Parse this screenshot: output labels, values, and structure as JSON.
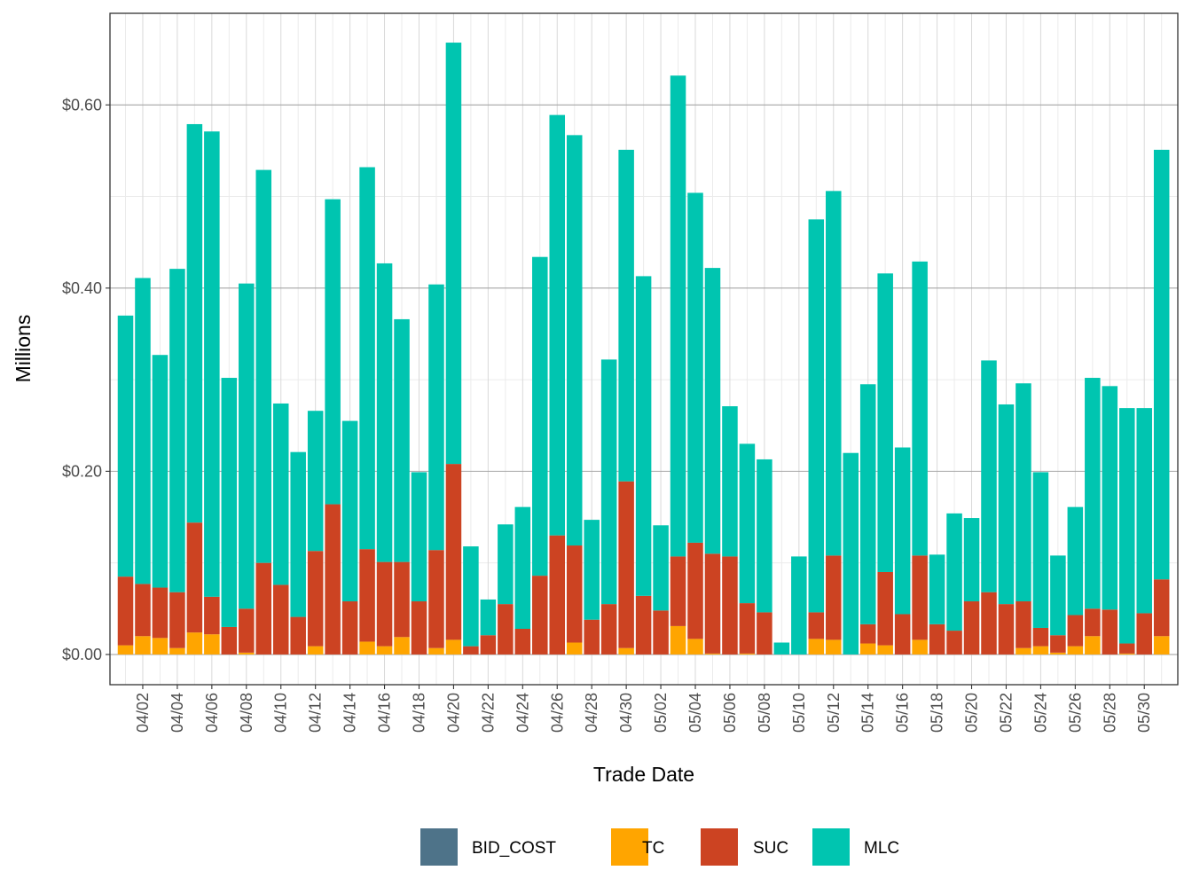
{
  "chart_data": {
    "type": "bar",
    "stacked": true,
    "xlabel": "Trade Date",
    "ylabel": "Millions",
    "ylim": [
      -0.033,
      0.7
    ],
    "y_ticks": [
      0.0,
      0.2,
      0.4,
      0.6
    ],
    "y_tick_labels": [
      "$0.00",
      "$0.20",
      "$0.40",
      "$0.60"
    ],
    "x_tick_labels": [
      "04/02",
      "04/04",
      "04/06",
      "04/08",
      "04/10",
      "04/12",
      "04/14",
      "04/16",
      "04/18",
      "04/20",
      "04/22",
      "04/24",
      "04/26",
      "04/28",
      "04/30",
      "05/02",
      "05/04",
      "05/06",
      "05/08",
      "05/10",
      "05/12",
      "05/14",
      "05/16",
      "05/18",
      "05/20",
      "05/22",
      "05/24",
      "05/26",
      "05/28",
      "05/30"
    ],
    "x_tick_start_index": 1,
    "x_tick_step": 2,
    "grid": true,
    "legend_position": "bottom",
    "categories": [
      "04/01",
      "04/02",
      "04/03",
      "04/04",
      "04/05",
      "04/06",
      "04/07",
      "04/08",
      "04/09",
      "04/10",
      "04/11",
      "04/12",
      "04/13",
      "04/14",
      "04/15",
      "04/16",
      "04/17",
      "04/18",
      "04/19",
      "04/20",
      "04/21",
      "04/22",
      "04/23",
      "04/24",
      "04/25",
      "04/26",
      "04/27",
      "04/28",
      "04/29",
      "04/30",
      "05/01",
      "05/02",
      "05/03",
      "05/04",
      "05/05",
      "05/06",
      "05/07",
      "05/08",
      "05/09",
      "05/10",
      "05/11",
      "05/12",
      "05/13",
      "05/14",
      "05/15",
      "05/16",
      "05/17",
      "05/18",
      "05/19",
      "05/20",
      "05/21",
      "05/22",
      "05/23",
      "05/24",
      "05/25",
      "05/26",
      "05/27",
      "05/28",
      "05/29",
      "05/30",
      "05/31"
    ],
    "series": [
      {
        "name": "BID_COST",
        "color": "#4e7389",
        "values": [
          0,
          0,
          0,
          0,
          0,
          0,
          0,
          0,
          0,
          0,
          0,
          0,
          0,
          0,
          0,
          0,
          0,
          0,
          0,
          0,
          0,
          0,
          0,
          0,
          0,
          0,
          0,
          0,
          0,
          0,
          0,
          0,
          0,
          0,
          0,
          0,
          0,
          0,
          0,
          0,
          0,
          0,
          0,
          0,
          0,
          0,
          0,
          0,
          0,
          0,
          0,
          0,
          0,
          0,
          0,
          0,
          0,
          0,
          0,
          0,
          0
        ]
      },
      {
        "name": "TC",
        "color": "#ffa500",
        "values": [
          0.01,
          0.02,
          0.018,
          0.007,
          0.024,
          0.022,
          0,
          0.002,
          0,
          0,
          0,
          0.009,
          0,
          0,
          0.014,
          0.009,
          0.019,
          0,
          0.007,
          0.016,
          0,
          0,
          0,
          0,
          0,
          0,
          0.013,
          0,
          0,
          0.007,
          0,
          0,
          0.031,
          0.017,
          0.001,
          0,
          0.001,
          0,
          0,
          0,
          0.017,
          0.016,
          0,
          0.012,
          0.01,
          0,
          0.016,
          0,
          0,
          0,
          0,
          0,
          0.007,
          0.009,
          0.002,
          0.009,
          0.02,
          0,
          0.001,
          0,
          0.02
        ]
      },
      {
        "name": "SUC",
        "color": "#cc4322",
        "values": [
          0.075,
          0.057,
          0.055,
          0.061,
          0.12,
          0.041,
          0.03,
          0.048,
          0.1,
          0.076,
          0.041,
          0.104,
          0.164,
          0.058,
          0.101,
          0.092,
          0.082,
          0.058,
          0.107,
          0.192,
          0.009,
          0.021,
          0.055,
          0.028,
          0.086,
          0.13,
          0.106,
          0.038,
          0.055,
          0.182,
          0.064,
          0.048,
          0.076,
          0.105,
          0.109,
          0.107,
          0.055,
          0.046,
          0,
          0,
          0.029,
          0.092,
          0,
          0.021,
          0.08,
          0.044,
          0.092,
          0.033,
          0.026,
          0.058,
          0.068,
          0.055,
          0.051,
          0.02,
          0.019,
          0.034,
          0.03,
          0.049,
          0.011,
          0.045,
          0.062
        ]
      },
      {
        "name": "MLC",
        "color": "#00c5b0",
        "values": [
          0.285,
          0.334,
          0.254,
          0.353,
          0.435,
          0.508,
          0.272,
          0.355,
          0.429,
          0.198,
          0.18,
          0.153,
          0.333,
          0.197,
          0.417,
          0.326,
          0.265,
          0.141,
          0.29,
          0.46,
          0.109,
          0.039,
          0.087,
          0.133,
          0.348,
          0.459,
          0.448,
          0.109,
          0.267,
          0.362,
          0.349,
          0.093,
          0.525,
          0.382,
          0.312,
          0.164,
          0.174,
          0.167,
          0.013,
          0.107,
          0.429,
          0.398,
          0.22,
          0.262,
          0.326,
          0.182,
          0.321,
          0.076,
          0.128,
          0.091,
          0.253,
          0.218,
          0.238,
          0.17,
          0.087,
          0.118,
          0.252,
          0.244,
          0.257,
          0.224,
          0.469
        ]
      }
    ]
  }
}
